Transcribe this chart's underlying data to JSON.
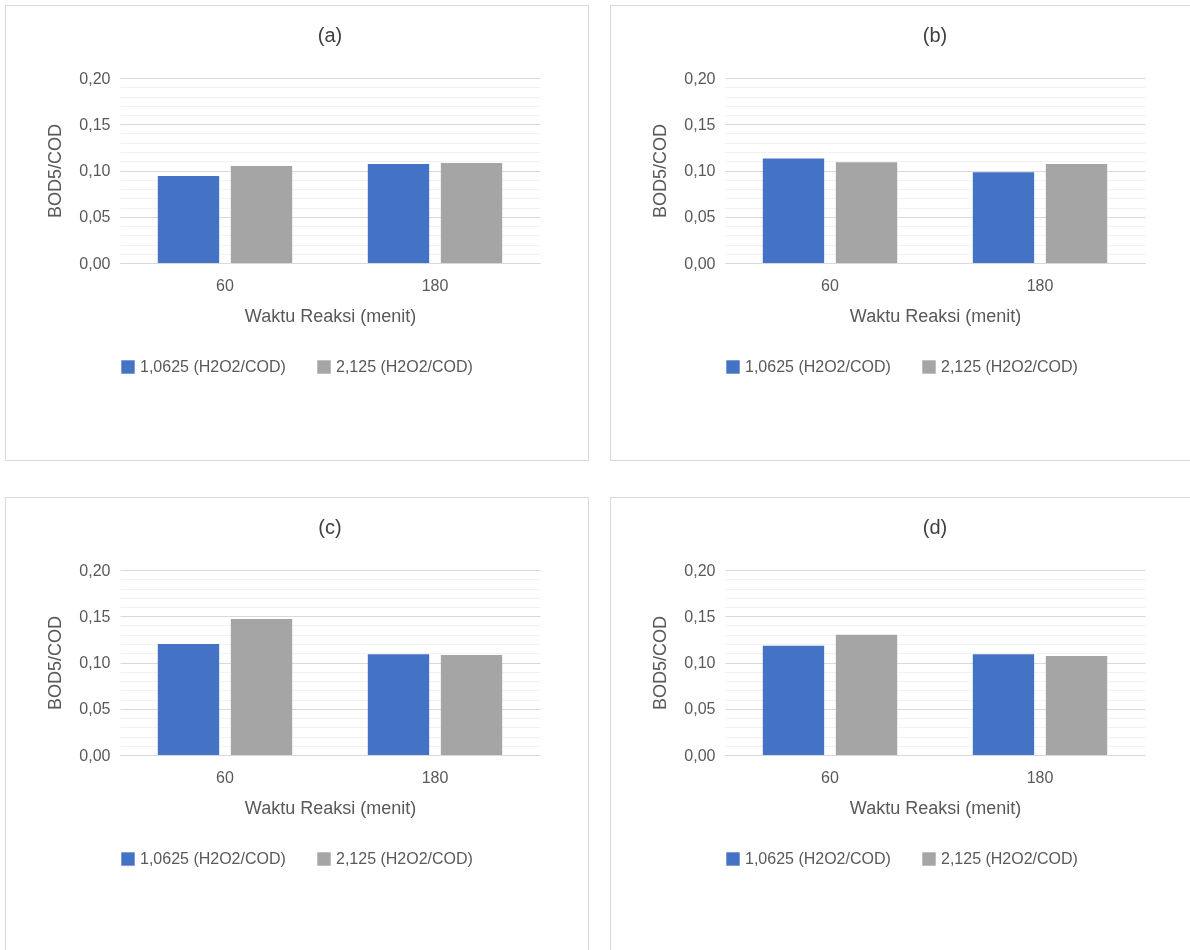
{
  "chart_data": [
    {
      "type": "bar",
      "title": "(a)",
      "xlabel": "Waktu Reaksi (menit)",
      "ylabel": "BOD5/COD",
      "categories": [
        "60",
        "180"
      ],
      "grid": "y",
      "legend": "bottom",
      "series": [
        {
          "name": "1,0625 (H2O2/COD)",
          "color": "#4472c4",
          "values": [
            0.094,
            0.107
          ]
        },
        {
          "name": "2,125 (H2O2/COD)",
          "color": "#a5a5a5",
          "values": [
            0.105,
            0.108
          ]
        }
      ],
      "ylim": [
        0,
        0.2
      ],
      "yticks": [
        {
          "value": 0,
          "label": "0,00"
        },
        {
          "value": 0.01,
          "label": null
        },
        {
          "value": 0.02,
          "label": null
        },
        {
          "value": 0.03,
          "label": null
        },
        {
          "value": 0.04,
          "label": null
        },
        {
          "value": 0.05,
          "label": "0,05"
        },
        {
          "value": 0.06,
          "label": null
        },
        {
          "value": 0.07,
          "label": null
        },
        {
          "value": 0.08,
          "label": null
        },
        {
          "value": 0.09,
          "label": null
        },
        {
          "value": 0.1,
          "label": "0,10"
        },
        {
          "value": 0.11,
          "label": null
        },
        {
          "value": 0.12,
          "label": null
        },
        {
          "value": 0.13,
          "label": null
        },
        {
          "value": 0.14,
          "label": null
        },
        {
          "value": 0.15,
          "label": "0,15"
        },
        {
          "value": 0.16,
          "label": null
        },
        {
          "value": 0.17,
          "label": null
        },
        {
          "value": 0.18,
          "label": null
        },
        {
          "value": 0.19,
          "label": null
        },
        {
          "value": 0.2,
          "label": "0,20"
        }
      ]
    },
    {
      "type": "bar",
      "title": "(b)",
      "xlabel": "Waktu Reaksi (menit)",
      "ylabel": "BOD5/COD",
      "categories": [
        "60",
        "180"
      ],
      "grid": "y",
      "legend": "bottom",
      "series": [
        {
          "name": "1,0625 (H2O2/COD)",
          "color": "#4472c4",
          "values": [
            0.113,
            0.098
          ]
        },
        {
          "name": "2,125 (H2O2/COD)",
          "color": "#a5a5a5",
          "values": [
            0.109,
            0.107
          ]
        }
      ],
      "ylim": [
        0,
        0.2
      ],
      "yticks": [
        {
          "value": 0,
          "label": "0,00"
        },
        {
          "value": 0.01,
          "label": null
        },
        {
          "value": 0.02,
          "label": null
        },
        {
          "value": 0.03,
          "label": null
        },
        {
          "value": 0.04,
          "label": null
        },
        {
          "value": 0.05,
          "label": "0,05"
        },
        {
          "value": 0.06,
          "label": null
        },
        {
          "value": 0.07,
          "label": null
        },
        {
          "value": 0.08,
          "label": null
        },
        {
          "value": 0.09,
          "label": null
        },
        {
          "value": 0.1,
          "label": "0,10"
        },
        {
          "value": 0.11,
          "label": null
        },
        {
          "value": 0.12,
          "label": null
        },
        {
          "value": 0.13,
          "label": null
        },
        {
          "value": 0.14,
          "label": null
        },
        {
          "value": 0.15,
          "label": "0,15"
        },
        {
          "value": 0.16,
          "label": null
        },
        {
          "value": 0.17,
          "label": null
        },
        {
          "value": 0.18,
          "label": null
        },
        {
          "value": 0.19,
          "label": null
        },
        {
          "value": 0.2,
          "label": "0,20"
        }
      ]
    },
    {
      "type": "bar",
      "title": "(c)",
      "xlabel": "Waktu Reaksi (menit)",
      "ylabel": "BOD5/COD",
      "categories": [
        "60",
        "180"
      ],
      "grid": "y",
      "legend": "bottom",
      "series": [
        {
          "name": "1,0625 (H2O2/COD)",
          "color": "#4472c4",
          "values": [
            0.12,
            0.109
          ]
        },
        {
          "name": "2,125 (H2O2/COD)",
          "color": "#a5a5a5",
          "values": [
            0.147,
            0.108
          ]
        }
      ],
      "ylim": [
        0,
        0.2
      ],
      "yticks": [
        {
          "value": 0,
          "label": "0,00"
        },
        {
          "value": 0.01,
          "label": null
        },
        {
          "value": 0.02,
          "label": null
        },
        {
          "value": 0.03,
          "label": null
        },
        {
          "value": 0.04,
          "label": null
        },
        {
          "value": 0.05,
          "label": "0,05"
        },
        {
          "value": 0.06,
          "label": null
        },
        {
          "value": 0.07,
          "label": null
        },
        {
          "value": 0.08,
          "label": null
        },
        {
          "value": 0.09,
          "label": null
        },
        {
          "value": 0.1,
          "label": "0,10"
        },
        {
          "value": 0.11,
          "label": null
        },
        {
          "value": 0.12,
          "label": null
        },
        {
          "value": 0.13,
          "label": null
        },
        {
          "value": 0.14,
          "label": null
        },
        {
          "value": 0.15,
          "label": "0,15"
        },
        {
          "value": 0.16,
          "label": null
        },
        {
          "value": 0.17,
          "label": null
        },
        {
          "value": 0.18,
          "label": null
        },
        {
          "value": 0.19,
          "label": null
        },
        {
          "value": 0.2,
          "label": "0,20"
        }
      ]
    },
    {
      "type": "bar",
      "title": "(d)",
      "xlabel": "Waktu Reaksi (menit)",
      "ylabel": "BOD5/COD",
      "categories": [
        "60",
        "180"
      ],
      "grid": "y",
      "legend": "bottom",
      "series": [
        {
          "name": "1,0625 (H2O2/COD)",
          "color": "#4472c4",
          "values": [
            0.118,
            0.109
          ]
        },
        {
          "name": "2,125 (H2O2/COD)",
          "color": "#a5a5a5",
          "values": [
            0.13,
            0.107
          ]
        }
      ],
      "ylim": [
        0,
        0.2
      ],
      "yticks": [
        {
          "value": 0,
          "label": "0,00"
        },
        {
          "value": 0.01,
          "label": null
        },
        {
          "value": 0.02,
          "label": null
        },
        {
          "value": 0.03,
          "label": null
        },
        {
          "value": 0.04,
          "label": null
        },
        {
          "value": 0.05,
          "label": "0,05"
        },
        {
          "value": 0.06,
          "label": null
        },
        {
          "value": 0.07,
          "label": null
        },
        {
          "value": 0.08,
          "label": null
        },
        {
          "value": 0.09,
          "label": null
        },
        {
          "value": 0.1,
          "label": "0,10"
        },
        {
          "value": 0.11,
          "label": null
        },
        {
          "value": 0.12,
          "label": null
        },
        {
          "value": 0.13,
          "label": null
        },
        {
          "value": 0.14,
          "label": null
        },
        {
          "value": 0.15,
          "label": "0,15"
        },
        {
          "value": 0.16,
          "label": null
        },
        {
          "value": 0.17,
          "label": null
        },
        {
          "value": 0.18,
          "label": null
        },
        {
          "value": 0.19,
          "label": null
        },
        {
          "value": 0.2,
          "label": "0,20"
        }
      ]
    }
  ]
}
